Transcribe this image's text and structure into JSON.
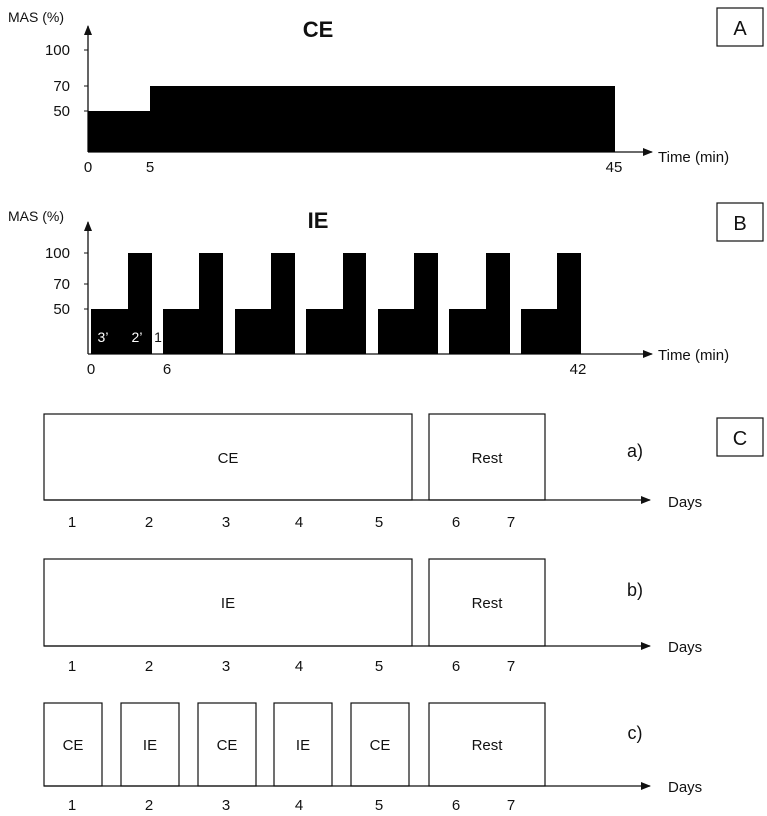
{
  "panel_a": {
    "tag": "A",
    "title": "CE",
    "y_axis_label": "MAS (%)",
    "y_ticks": [
      "100",
      "70",
      "50"
    ],
    "x_ticks": [
      "0",
      "5",
      "45"
    ],
    "x_axis_label": "Time (min)",
    "profile": [
      {
        "start_min": 0,
        "end_min": 5,
        "mas_pct": 50
      },
      {
        "start_min": 5,
        "end_min": 45,
        "mas_pct": 70
      }
    ]
  },
  "panel_b": {
    "tag": "B",
    "title": "IE",
    "y_axis_label": "MAS (%)",
    "y_ticks": [
      "100",
      "70",
      "50"
    ],
    "x_ticks": [
      "0",
      "6",
      "42"
    ],
    "x_axis_label": "Time (min)",
    "phase_labels": [
      "3’",
      "2’",
      "1"
    ],
    "blocks": 7,
    "block_pattern": [
      {
        "duration_min": 3,
        "mas_pct": 50
      },
      {
        "duration_min": 2,
        "mas_pct": 100
      },
      {
        "duration_min": 1,
        "mas_pct": 0
      }
    ]
  },
  "panel_c": {
    "tag": "C",
    "x_axis_label": "Days",
    "day_labels": [
      "1",
      "2",
      "3",
      "4",
      "5",
      "6",
      "7"
    ],
    "schedules": [
      {
        "label": "a)",
        "boxes": [
          "CE",
          "Rest"
        ]
      },
      {
        "label": "b)",
        "boxes": [
          "IE",
          "Rest"
        ]
      },
      {
        "label": "c)",
        "boxes": [
          "CE",
          "IE",
          "CE",
          "IE",
          "CE",
          "Rest"
        ]
      }
    ]
  }
}
